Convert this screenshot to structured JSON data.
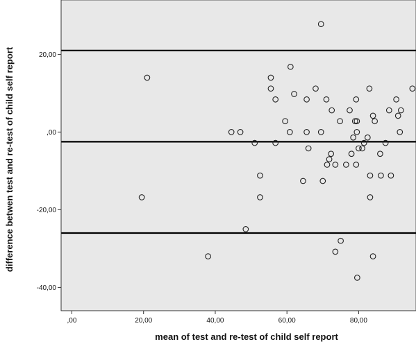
{
  "chart_data": {
    "type": "scatter",
    "title": "",
    "xlabel": "mean of test and re-test of child self report",
    "ylabel": "difference betwen test and re-test of child self report",
    "xlim": [
      -3,
      96
    ],
    "ylim": [
      -46,
      34
    ],
    "x_ticks": [
      {
        "value": 0,
        "label": ",00"
      },
      {
        "value": 20,
        "label": "20,00"
      },
      {
        "value": 40,
        "label": "40,00"
      },
      {
        "value": 60,
        "label": "60,00"
      },
      {
        "value": 80,
        "label": "80,00"
      }
    ],
    "y_ticks": [
      {
        "value": 20,
        "label": "20,00"
      },
      {
        "value": 0,
        "label": ",00"
      },
      {
        "value": -20,
        "label": "-20,00"
      },
      {
        "value": -40,
        "label": "-40,00"
      }
    ],
    "reference_lines": [
      21.0,
      -2.5,
      -26.0
    ],
    "colors": {
      "plot_background": "#e8e8e8",
      "page_background": "#ffffff",
      "marker_stroke": "#222222",
      "reference_line": "#000000"
    },
    "points": [
      {
        "x": 69.5,
        "y": 27.8
      },
      {
        "x": 21.0,
        "y": 14.0
      },
      {
        "x": 19.5,
        "y": -16.8
      },
      {
        "x": 38.0,
        "y": -32.0
      },
      {
        "x": 44.5,
        "y": 0.0
      },
      {
        "x": 47.0,
        "y": 0.0
      },
      {
        "x": 48.5,
        "y": -25.0
      },
      {
        "x": 51.0,
        "y": -2.8
      },
      {
        "x": 52.5,
        "y": -11.2
      },
      {
        "x": 52.5,
        "y": -16.8
      },
      {
        "x": 55.5,
        "y": 14.0
      },
      {
        "x": 55.5,
        "y": 11.2
      },
      {
        "x": 56.8,
        "y": 8.4
      },
      {
        "x": 56.8,
        "y": -2.8
      },
      {
        "x": 59.5,
        "y": 2.8
      },
      {
        "x": 60.8,
        "y": 0.0
      },
      {
        "x": 61.0,
        "y": 16.8
      },
      {
        "x": 62.0,
        "y": 9.8
      },
      {
        "x": 64.5,
        "y": -12.6
      },
      {
        "x": 65.5,
        "y": 8.4
      },
      {
        "x": 65.5,
        "y": 0.0
      },
      {
        "x": 66.0,
        "y": -4.2
      },
      {
        "x": 68.0,
        "y": 11.2
      },
      {
        "x": 69.5,
        "y": 0.0
      },
      {
        "x": 70.0,
        "y": -12.6
      },
      {
        "x": 71.0,
        "y": 8.4
      },
      {
        "x": 71.2,
        "y": -8.4
      },
      {
        "x": 71.8,
        "y": -7.0
      },
      {
        "x": 72.3,
        "y": -5.6
      },
      {
        "x": 72.5,
        "y": 5.6
      },
      {
        "x": 73.5,
        "y": -8.4
      },
      {
        "x": 73.5,
        "y": -30.8
      },
      {
        "x": 74.8,
        "y": 2.8
      },
      {
        "x": 75.0,
        "y": -28.0
      },
      {
        "x": 76.5,
        "y": -8.4
      },
      {
        "x": 77.5,
        "y": 5.6
      },
      {
        "x": 78.0,
        "y": -5.6
      },
      {
        "x": 78.5,
        "y": -1.4
      },
      {
        "x": 79.0,
        "y": 2.8
      },
      {
        "x": 79.3,
        "y": 8.4
      },
      {
        "x": 79.3,
        "y": -8.4
      },
      {
        "x": 79.5,
        "y": 0.0
      },
      {
        "x": 79.5,
        "y": 2.8
      },
      {
        "x": 79.6,
        "y": -37.5
      },
      {
        "x": 80.0,
        "y": -4.2
      },
      {
        "x": 81.0,
        "y": -4.2
      },
      {
        "x": 81.5,
        "y": -2.8
      },
      {
        "x": 82.5,
        "y": -1.4
      },
      {
        "x": 83.0,
        "y": 11.2
      },
      {
        "x": 83.2,
        "y": -11.2
      },
      {
        "x": 83.2,
        "y": -16.8
      },
      {
        "x": 84.0,
        "y": 4.2
      },
      {
        "x": 84.0,
        "y": -32.0
      },
      {
        "x": 84.5,
        "y": 2.8
      },
      {
        "x": 86.0,
        "y": -5.6
      },
      {
        "x": 86.2,
        "y": -11.2
      },
      {
        "x": 87.5,
        "y": -2.8
      },
      {
        "x": 88.5,
        "y": 5.6
      },
      {
        "x": 89.0,
        "y": -11.2
      },
      {
        "x": 90.5,
        "y": 8.4
      },
      {
        "x": 91.0,
        "y": 4.2
      },
      {
        "x": 91.5,
        "y": 0.0
      },
      {
        "x": 91.8,
        "y": 5.6
      },
      {
        "x": 95.0,
        "y": 11.2
      }
    ]
  }
}
